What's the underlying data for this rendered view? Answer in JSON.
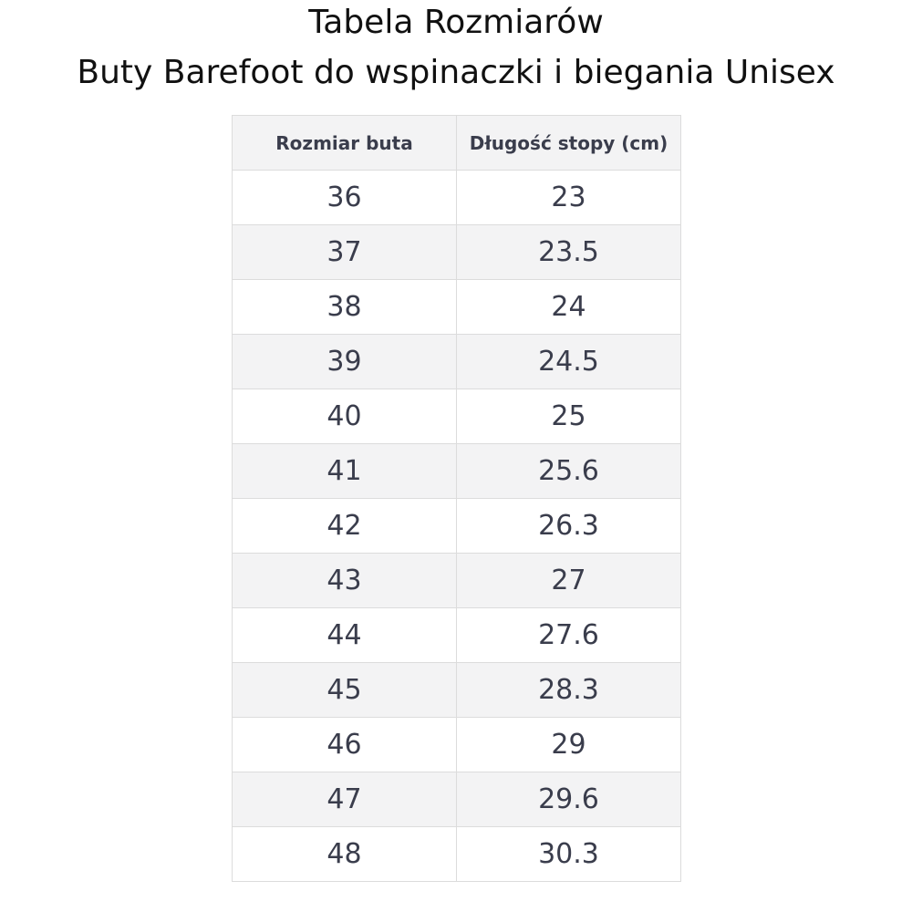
{
  "header": {
    "title": "Tabela Rozmiarów",
    "subtitle": "Buty Barefoot do wspinaczki i biegania Unisex"
  },
  "table": {
    "columns": [
      "Rozmiar buta",
      "Długość stopy (cm)"
    ],
    "rows": [
      [
        36,
        23
      ],
      [
        37,
        23.5
      ],
      [
        38,
        24
      ],
      [
        39,
        24.5
      ],
      [
        40,
        25
      ],
      [
        41,
        25.6
      ],
      [
        42,
        26.3
      ],
      [
        43,
        27
      ],
      [
        44,
        27.6
      ],
      [
        45,
        28.3
      ],
      [
        46,
        29
      ],
      [
        47,
        29.6
      ],
      [
        48,
        30.3
      ]
    ]
  }
}
